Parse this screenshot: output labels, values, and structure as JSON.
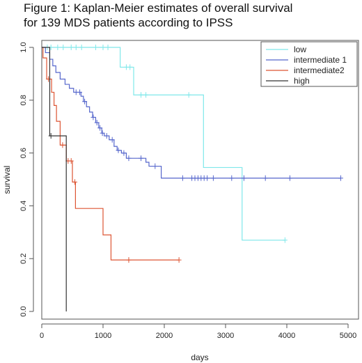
{
  "chart_data": {
    "type": "line",
    "title_lines": [
      "Figure 1: Kaplan-Meier estimates of overall survival",
      "for 139 MDS patients according to IPSS"
    ],
    "xlabel": "days",
    "ylabel": "survival",
    "xlim": [
      0,
      5000
    ],
    "ylim": [
      0.0,
      1.0
    ],
    "xticks": [
      0,
      1000,
      2000,
      3000,
      4000,
      5000
    ],
    "yticks": [
      0.0,
      0.2,
      0.4,
      0.6,
      0.8,
      1.0
    ],
    "xtick_labels": [
      "0",
      "1000",
      "2000",
      "3000",
      "4000",
      "5000"
    ],
    "ytick_labels": [
      "0.0",
      "0.2",
      "0.4",
      "0.6",
      "0.8",
      "1.0"
    ],
    "grid": false,
    "legend_position": "top-right",
    "series": [
      {
        "name": "low",
        "color": "#7fe8ea",
        "steps": [
          [
            0,
            1.0
          ],
          [
            1280,
            0.925
          ],
          [
            1500,
            0.82
          ],
          [
            2640,
            0.545
          ],
          [
            3270,
            0.27
          ],
          [
            3970,
            0.27
          ]
        ],
        "censored": [
          [
            90,
            1.0
          ],
          [
            150,
            1.0
          ],
          [
            260,
            1.0
          ],
          [
            350,
            1.0
          ],
          [
            480,
            1.0
          ],
          [
            560,
            1.0
          ],
          [
            650,
            1.0
          ],
          [
            880,
            1.0
          ],
          [
            1000,
            1.0
          ],
          [
            1080,
            1.0
          ],
          [
            1380,
            0.925
          ],
          [
            1440,
            0.925
          ],
          [
            1620,
            0.82
          ],
          [
            1700,
            0.82
          ],
          [
            2400,
            0.82
          ],
          [
            3970,
            0.27
          ]
        ]
      },
      {
        "name": "intermediate 1",
        "color": "#5566cc",
        "steps": [
          [
            0,
            1.0
          ],
          [
            60,
            0.98
          ],
          [
            130,
            0.955
          ],
          [
            180,
            0.93
          ],
          [
            230,
            0.905
          ],
          [
            300,
            0.88
          ],
          [
            380,
            0.86
          ],
          [
            450,
            0.845
          ],
          [
            520,
            0.83
          ],
          [
            640,
            0.815
          ],
          [
            680,
            0.795
          ],
          [
            730,
            0.775
          ],
          [
            780,
            0.755
          ],
          [
            830,
            0.735
          ],
          [
            880,
            0.715
          ],
          [
            930,
            0.695
          ],
          [
            980,
            0.675
          ],
          [
            1020,
            0.665
          ],
          [
            1100,
            0.65
          ],
          [
            1180,
            0.625
          ],
          [
            1230,
            0.61
          ],
          [
            1300,
            0.6
          ],
          [
            1380,
            0.58
          ],
          [
            1700,
            0.565
          ],
          [
            1750,
            0.55
          ],
          [
            1950,
            0.505
          ],
          [
            4880,
            0.505
          ]
        ],
        "censored": [
          [
            560,
            0.83
          ],
          [
            620,
            0.83
          ],
          [
            700,
            0.795
          ],
          [
            840,
            0.735
          ],
          [
            900,
            0.715
          ],
          [
            950,
            0.695
          ],
          [
            990,
            0.675
          ],
          [
            1060,
            0.665
          ],
          [
            1150,
            0.65
          ],
          [
            1250,
            0.61
          ],
          [
            1340,
            0.6
          ],
          [
            1420,
            0.58
          ],
          [
            1620,
            0.58
          ],
          [
            1850,
            0.55
          ],
          [
            2300,
            0.505
          ],
          [
            2450,
            0.505
          ],
          [
            2500,
            0.505
          ],
          [
            2550,
            0.505
          ],
          [
            2600,
            0.505
          ],
          [
            2650,
            0.505
          ],
          [
            2700,
            0.505
          ],
          [
            2800,
            0.505
          ],
          [
            3100,
            0.505
          ],
          [
            3300,
            0.505
          ],
          [
            3650,
            0.505
          ],
          [
            4050,
            0.505
          ],
          [
            4880,
            0.505
          ]
        ]
      },
      {
        "name": "intermediate2",
        "color": "#dd5533",
        "steps": [
          [
            0,
            1.0
          ],
          [
            20,
            0.96
          ],
          [
            80,
            0.88
          ],
          [
            160,
            0.83
          ],
          [
            200,
            0.78
          ],
          [
            240,
            0.72
          ],
          [
            300,
            0.63
          ],
          [
            400,
            0.57
          ],
          [
            500,
            0.49
          ],
          [
            550,
            0.39
          ],
          [
            1000,
            0.29
          ],
          [
            1130,
            0.195
          ],
          [
            2240,
            0.195
          ]
        ],
        "censored": [
          [
            110,
            0.88
          ],
          [
            340,
            0.63
          ],
          [
            430,
            0.57
          ],
          [
            480,
            0.57
          ],
          [
            540,
            0.49
          ],
          [
            1420,
            0.195
          ],
          [
            2240,
            0.195
          ]
        ]
      },
      {
        "name": "high",
        "color": "#333333",
        "steps": [
          [
            0,
            1.0
          ],
          [
            130,
            0.665
          ],
          [
            400,
            0.0
          ]
        ],
        "censored": [
          [
            150,
            0.665
          ]
        ]
      }
    ]
  }
}
